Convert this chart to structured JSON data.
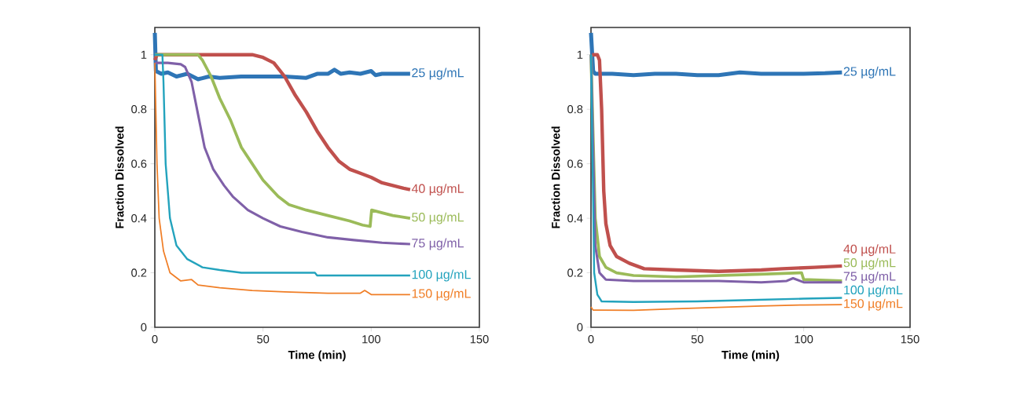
{
  "chart_data": [
    {
      "type": "line",
      "xlabel": "Time (min)",
      "ylabel": "Fraction Dissolved",
      "xlim": [
        0,
        150
      ],
      "ylim": [
        0,
        1.1
      ],
      "xticks": [
        0,
        50,
        100,
        150
      ],
      "yticks": [
        0,
        0.2,
        0.4,
        0.6,
        0.8,
        1
      ],
      "series": [
        {
          "name": "25 µg/mL",
          "color": "#2e75b6",
          "x": [
            0,
            0.5,
            3,
            6,
            10,
            15,
            20,
            25,
            30,
            40,
            50,
            60,
            70,
            75,
            80,
            83,
            86,
            90,
            95,
            100,
            102,
            105,
            110,
            118
          ],
          "values": [
            1.08,
            0.94,
            0.93,
            0.935,
            0.92,
            0.93,
            0.91,
            0.92,
            0.915,
            0.92,
            0.92,
            0.92,
            0.915,
            0.93,
            0.93,
            0.945,
            0.93,
            0.935,
            0.93,
            0.94,
            0.925,
            0.93,
            0.93,
            0.93
          ]
        },
        {
          "name": "40 µg/mL",
          "color": "#c0504d",
          "x": [
            0,
            1,
            10,
            20,
            30,
            40,
            45,
            50,
            55,
            60,
            65,
            70,
            75,
            80,
            85,
            90,
            95,
            100,
            105,
            110,
            115,
            118
          ],
          "values": [
            0.98,
            1.0,
            1.0,
            1.0,
            1.0,
            1.0,
            1.0,
            0.99,
            0.97,
            0.92,
            0.85,
            0.79,
            0.72,
            0.66,
            0.61,
            0.58,
            0.565,
            0.55,
            0.53,
            0.52,
            0.51,
            0.505
          ]
        },
        {
          "name": "50 µg/mL",
          "color": "#9bbb59",
          "x": [
            0,
            5,
            10,
            15,
            20,
            22,
            26,
            30,
            35,
            40,
            45,
            50,
            57,
            62,
            70,
            80,
            90,
            96,
            99.5,
            100.2,
            105,
            110,
            118
          ],
          "values": [
            1.0,
            1.0,
            1.0,
            1.0,
            1.0,
            0.98,
            0.92,
            0.84,
            0.76,
            0.66,
            0.6,
            0.54,
            0.48,
            0.45,
            0.43,
            0.41,
            0.39,
            0.375,
            0.37,
            0.43,
            0.42,
            0.41,
            0.4
          ]
        },
        {
          "name": "75 µg/mL",
          "color": "#7f60a8",
          "x": [
            0,
            6,
            12,
            14,
            17,
            20,
            23,
            27,
            32,
            36,
            43,
            50,
            58,
            68,
            80,
            92,
            105,
            118
          ],
          "values": [
            0.97,
            0.97,
            0.965,
            0.955,
            0.9,
            0.78,
            0.66,
            0.58,
            0.52,
            0.48,
            0.43,
            0.4,
            0.37,
            0.35,
            0.33,
            0.32,
            0.31,
            0.305
          ]
        },
        {
          "name": "100 µg/mL",
          "color": "#23a3bd",
          "x": [
            0,
            2,
            3.5,
            4,
            5,
            7,
            10,
            15,
            22,
            30,
            40,
            60,
            74,
            75,
            90,
            100,
            110,
            118
          ],
          "values": [
            1.0,
            1.0,
            1.0,
            0.9,
            0.6,
            0.4,
            0.3,
            0.25,
            0.22,
            0.21,
            0.2,
            0.2,
            0.2,
            0.19,
            0.19,
            0.19,
            0.19,
            0.19
          ]
        },
        {
          "name": "150 µg/mL",
          "color": "#f07e26",
          "x": [
            0,
            1,
            2,
            4,
            7,
            12,
            17,
            20,
            30,
            45,
            60,
            80,
            95,
            97,
            100,
            110,
            118
          ],
          "values": [
            0.97,
            0.6,
            0.4,
            0.28,
            0.2,
            0.17,
            0.175,
            0.155,
            0.145,
            0.135,
            0.13,
            0.125,
            0.125,
            0.135,
            0.12,
            0.12,
            0.12
          ]
        }
      ]
    },
    {
      "type": "line",
      "xlabel": "Time (min)",
      "ylabel": "Fraction Dissolved",
      "xlim": [
        0,
        150
      ],
      "ylim": [
        0,
        1.1
      ],
      "xticks": [
        0,
        50,
        100,
        150
      ],
      "yticks": [
        0,
        0.2,
        0.4,
        0.6,
        0.8,
        1
      ],
      "series": [
        {
          "name": "25 µg/mL",
          "color": "#2e75b6",
          "x": [
            0,
            1,
            2,
            10,
            20,
            30,
            40,
            50,
            60,
            70,
            80,
            90,
            100,
            110,
            118
          ],
          "values": [
            1.08,
            0.94,
            0.93,
            0.93,
            0.925,
            0.93,
            0.93,
            0.925,
            0.925,
            0.935,
            0.93,
            0.93,
            0.93,
            0.932,
            0.935
          ]
        },
        {
          "name": "40 µg/mL",
          "color": "#c0504d",
          "x": [
            0.5,
            3,
            4,
            5,
            6,
            7,
            9,
            12,
            18,
            25,
            40,
            60,
            80,
            90,
            105,
            118
          ],
          "values": [
            1.0,
            1.0,
            0.98,
            0.8,
            0.5,
            0.38,
            0.3,
            0.26,
            0.235,
            0.215,
            0.21,
            0.205,
            0.21,
            0.215,
            0.22,
            0.225
          ]
        },
        {
          "name": "50 µg/mL",
          "color": "#9bbb59",
          "x": [
            0,
            2,
            4,
            7,
            12,
            20,
            40,
            60,
            80,
            99,
            100,
            118
          ],
          "values": [
            1.0,
            0.4,
            0.26,
            0.22,
            0.2,
            0.19,
            0.185,
            0.19,
            0.195,
            0.2,
            0.175,
            0.17
          ]
        },
        {
          "name": "75 µg/mL",
          "color": "#7f60a8",
          "x": [
            0,
            2,
            4,
            7,
            20,
            60,
            80,
            92,
            95,
            100,
            118
          ],
          "values": [
            1.0,
            0.3,
            0.2,
            0.175,
            0.17,
            0.17,
            0.165,
            0.17,
            0.18,
            0.165,
            0.165
          ]
        },
        {
          "name": "100 µg/mL",
          "color": "#23a3bd",
          "x": [
            0,
            1.5,
            3,
            5,
            20,
            50,
            75,
            100,
            118
          ],
          "values": [
            1.0,
            0.2,
            0.12,
            0.095,
            0.093,
            0.095,
            0.1,
            0.105,
            0.108
          ]
        },
        {
          "name": "150 µg/mL",
          "color": "#f07e26",
          "x": [
            0,
            1,
            20,
            40,
            60,
            80,
            100,
            118
          ],
          "values": [
            0.075,
            0.063,
            0.062,
            0.068,
            0.073,
            0.078,
            0.082,
            0.083
          ]
        }
      ]
    }
  ]
}
